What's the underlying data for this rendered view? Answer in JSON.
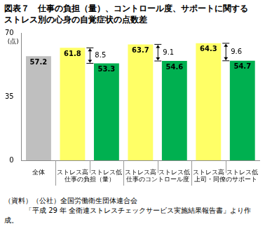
{
  "chart_data": {
    "type": "bar",
    "title": "図表７　仕事の負担（量）、コントロール度、サポートに関する\nストレス別の心身の自覚症状の点数差",
    "ylabel": "(点)",
    "categories": [
      "全体",
      "ストレス高",
      "ストレス低",
      "ストレス高",
      "ストレス低",
      "ストレス高",
      "ストレス低"
    ],
    "groups": [
      null,
      "仕事の負担（量）",
      "仕事の負担（量）",
      "仕事のコントロール度",
      "仕事のコントロール度",
      "上司・同僚のサポート",
      "上司・同僚のサポート"
    ],
    "values": [
      57.2,
      61.8,
      53.3,
      63.7,
      54.6,
      64.3,
      54.7
    ],
    "colors": [
      "#bfbfbf",
      "#ffff66",
      "#00b050",
      "#ffff66",
      "#00b050",
      "#ffff66",
      "#00b050"
    ],
    "differences": [
      {
        "value": 8.5,
        "from": 1,
        "to": 2
      },
      {
        "value": 9.1,
        "from": 3,
        "to": 4
      },
      {
        "value": 9.6,
        "from": 5,
        "to": 6
      }
    ],
    "ylim": [
      0,
      70
    ],
    "yticks": [
      0,
      35,
      70
    ],
    "grid": false,
    "data_labels": true,
    "legend": null,
    "source": "（資料）（公社）全国労働衛生団体連合会\n　　　「平成 29 年 全衛連ストレスチェックサービス実施結果報告書」より作成。"
  }
}
